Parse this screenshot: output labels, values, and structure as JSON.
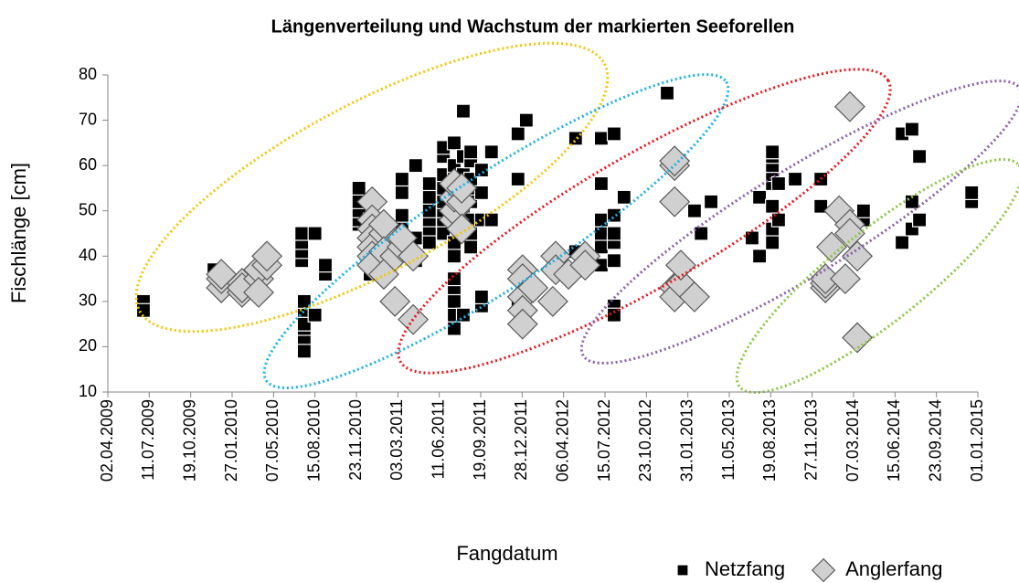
{
  "chart_data": {
    "type": "scatter",
    "title": "Längenverteilung und Wachstum der markierten Seeforellen",
    "x_label": "Fangdatum",
    "y_label": "Fischlänge [cm]",
    "xlim": [
      "02.04.2009",
      "01.01.2015"
    ],
    "xticks": [
      "02.04.2009",
      "11.07.2009",
      "19.10.2009",
      "27.01.2010",
      "07.05.2010",
      "15.08.2010",
      "23.11.2010",
      "03.03.2011",
      "11.06.2011",
      "19.09.2011",
      "28.12.2011",
      "06.04.2012",
      "15.07.2012",
      "23.10.2012",
      "31.01.2013",
      "11.05.2013",
      "19.08.2013",
      "27.11.2013",
      "07.03.2014",
      "15.06.2014",
      "23.09.2014",
      "01.01.2015"
    ],
    "ylim": [
      10,
      80
    ],
    "yticks": [
      10,
      20,
      30,
      40,
      50,
      60,
      70,
      80
    ],
    "grid": false,
    "legend": "bottom-right",
    "series": [
      {
        "name": "Netzfang",
        "marker": "square",
        "color": "#000000",
        "x": [
          "27.06.2009",
          "27.06.2009",
          "14.12.2009",
          "14.07.2010",
          "14.07.2010",
          "14.07.2010",
          "14.07.2010",
          "20.07.2010",
          "20.07.2010",
          "20.07.2010",
          "20.07.2010",
          "20.07.2010",
          "20.07.2010",
          "20.07.2010",
          "15.08.2010",
          "15.08.2010",
          "09.09.2010",
          "09.09.2010",
          "29.11.2010",
          "29.11.2010",
          "29.11.2010",
          "29.11.2010",
          "29.11.2010",
          "26.12.2010",
          "26.12.2010",
          "26.12.2010",
          "26.12.2010",
          "26.12.2010",
          "26.12.2010",
          "26.12.2010",
          "13.03.2011",
          "13.03.2011",
          "13.03.2011",
          "13.03.2011",
          "15.04.2011",
          "15.04.2011",
          "15.04.2011",
          "18.05.2011",
          "18.05.2011",
          "18.05.2011",
          "18.05.2011",
          "18.05.2011",
          "18.05.2011",
          "21.06.2011",
          "21.06.2011",
          "21.06.2011",
          "21.06.2011",
          "21.06.2011",
          "21.06.2011",
          "21.06.2011",
          "21.06.2011",
          "17.07.2011",
          "17.07.2011",
          "17.07.2011",
          "17.07.2011",
          "17.07.2011",
          "17.07.2011",
          "17.07.2011",
          "17.07.2011",
          "17.07.2011",
          "17.07.2011",
          "08.08.2011",
          "08.08.2011",
          "08.08.2011",
          "08.08.2011",
          "08.08.2011",
          "08.08.2011",
          "08.08.2011",
          "08.08.2011",
          "26.08.2011",
          "26.08.2011",
          "26.08.2011",
          "26.08.2011",
          "26.08.2011",
          "26.08.2011",
          "26.08.2011",
          "26.08.2011",
          "21.09.2011",
          "21.09.2011",
          "21.09.2011",
          "21.09.2011",
          "21.09.2011",
          "15.10.2011",
          "15.10.2011",
          "18.12.2011",
          "18.12.2011",
          "18.12.2011",
          "07.01.2012",
          "07.01.2012",
          "05.05.2012",
          "05.05.2012",
          "06.07.2012",
          "06.07.2012",
          "06.07.2012",
          "06.07.2012",
          "06.07.2012",
          "06.07.2012",
          "06.08.2012",
          "06.08.2012",
          "06.08.2012",
          "06.08.2012",
          "06.08.2012",
          "06.08.2012",
          "06.08.2012",
          "30.08.2012",
          "12.12.2012",
          "16.02.2013",
          "04.03.2013",
          "28.03.2013",
          "05.07.2013",
          "23.07.2013",
          "23.07.2013",
          "23.08.2013",
          "23.08.2013",
          "23.08.2013",
          "23.08.2013",
          "23.08.2013",
          "23.08.2013",
          "23.08.2013",
          "23.08.2013",
          "07.09.2013",
          "07.09.2013",
          "17.10.2013",
          "18.12.2013",
          "18.12.2013",
          "31.03.2014",
          "31.03.2014",
          "02.07.2014",
          "02.07.2014",
          "26.07.2014",
          "26.07.2014",
          "26.07.2014",
          "13.08.2014",
          "13.08.2014",
          "17.12.2014",
          "17.12.2014"
        ],
        "values": [
          30,
          28,
          37,
          39,
          41,
          43,
          45,
          20,
          22,
          25,
          28,
          30,
          21,
          19,
          27,
          45,
          36,
          38,
          47,
          48,
          50,
          52,
          55,
          36,
          38,
          40,
          42,
          44,
          46,
          48,
          47,
          54,
          57,
          49,
          39,
          60,
          44,
          43,
          46,
          48,
          50,
          53,
          56,
          45,
          48,
          50,
          52,
          55,
          58,
          62,
          64,
          24,
          27,
          30,
          33,
          35,
          40,
          43,
          65,
          60,
          57,
          72,
          46,
          49,
          52,
          55,
          58,
          62,
          27,
          42,
          45,
          48,
          52,
          55,
          57,
          61,
          63,
          29,
          31,
          48,
          59,
          54,
          63,
          48,
          67,
          57,
          30,
          70,
          34,
          66,
          41,
          66,
          56,
          38,
          42,
          45,
          48,
          67,
          29,
          39,
          43,
          45,
          49,
          27,
          53,
          76,
          50,
          45,
          52,
          44,
          40,
          53,
          43,
          46,
          51,
          56,
          58,
          60,
          62,
          63,
          48,
          56,
          57,
          51,
          57,
          48,
          50,
          43,
          67,
          52,
          46,
          68,
          62,
          48,
          52,
          54
        ]
      },
      {
        "name": "Anglerfang",
        "marker": "diamond",
        "color": "#d0d0d0",
        "x": [
          "01.01.2010",
          "01.01.2010",
          "01.01.2010",
          "20.02.2010",
          "20.02.2010",
          "20.02.2010",
          "01.04.2010",
          "01.04.2010",
          "01.04.2010",
          "21.04.2010",
          "21.04.2010",
          "31.12.2010",
          "31.12.2010",
          "31.12.2010",
          "31.12.2010",
          "31.12.2010",
          "31.12.2010",
          "31.12.2010",
          "28.01.2011",
          "28.01.2011",
          "28.01.2011",
          "28.01.2011",
          "24.02.2011",
          "24.02.2011",
          "13.03.2011",
          "13.03.2011",
          "09.04.2011",
          "09.04.2011",
          "17.07.2011",
          "17.07.2011",
          "17.07.2011",
          "17.07.2011",
          "04.08.2011",
          "04.08.2011",
          "04.08.2011",
          "29.12.2011",
          "29.12.2011",
          "29.12.2011",
          "29.12.2011",
          "29.12.2011",
          "23.01.2012",
          "11.03.2012",
          "18.03.2012",
          "18.03.2012",
          "18.04.2012",
          "28.05.2012",
          "28.05.2012",
          "30.12.2012",
          "30.12.2012",
          "30.12.2012",
          "30.12.2012",
          "30.12.2012",
          "14.01.2013",
          "14.01.2013",
          "16.02.2013",
          "29.12.2013",
          "29.12.2013",
          "29.12.2013",
          "13.01.2014",
          "31.01.2014",
          "15.02.2014",
          "26.02.2014",
          "26.02.2014",
          "26.02.2014",
          "16.03.2014",
          "16.03.2014"
        ],
        "values": [
          33,
          35,
          36,
          32,
          34,
          33,
          35,
          37,
          32,
          38,
          40,
          52,
          48,
          46,
          44,
          42,
          40,
          38,
          45,
          47,
          41,
          36,
          30,
          40,
          42,
          44,
          26,
          40,
          48,
          50,
          53,
          56,
          52,
          55,
          46,
          37,
          35,
          31,
          28,
          25,
          33,
          30,
          40,
          37,
          36,
          40,
          38,
          60,
          61,
          52,
          33,
          31,
          34,
          38,
          31,
          33,
          34,
          35,
          42,
          50,
          35,
          73,
          47,
          45,
          22,
          40
        ]
      }
    ]
  }
}
